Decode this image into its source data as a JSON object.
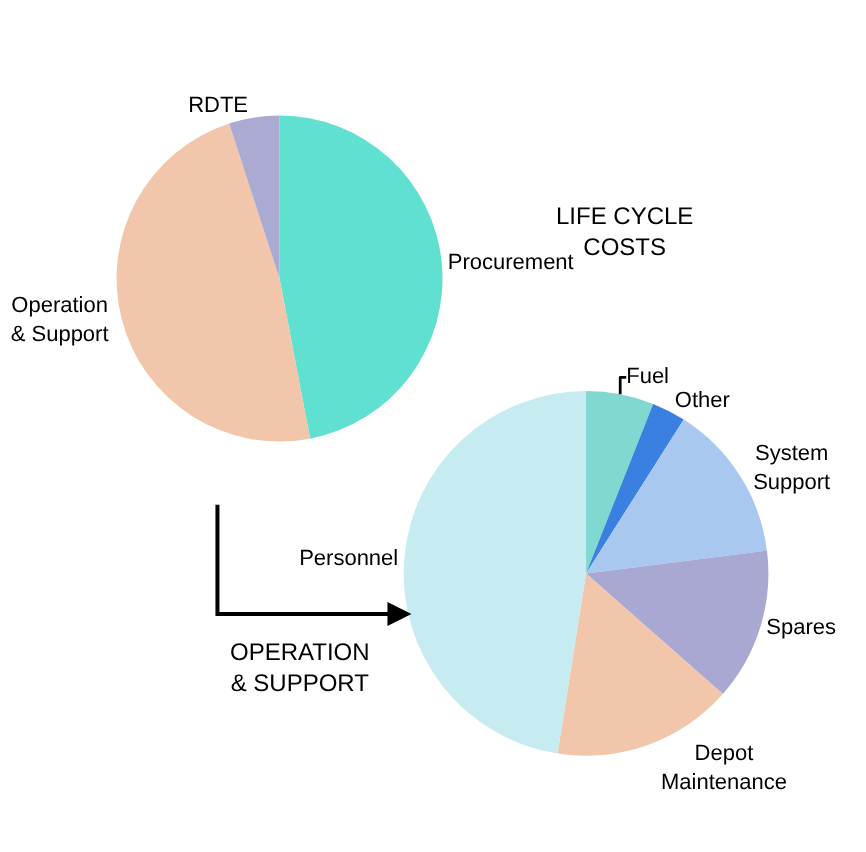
{
  "chart_data": [
    {
      "type": "pie",
      "title": "LIFE CYCLE\nCOSTS",
      "categories": [
        "Procurement",
        "Operation\n& Support",
        "RDTE"
      ],
      "values": [
        47,
        48,
        5
      ],
      "colors": [
        "#5fe0d0",
        "#f2c6aa",
        "#aaaad2"
      ]
    },
    {
      "type": "pie",
      "title": "OPERATION\n& SUPPORT",
      "categories": [
        "Fuel",
        "Other",
        "System\nSupport",
        "Spares",
        "Depot\nMaintenance",
        "Personnel"
      ],
      "values": [
        6,
        3,
        14,
        13.5,
        16,
        47.5
      ],
      "colors": [
        "#80d8d0",
        "#3a80e0",
        "#a8c8f0",
        "#a8a8d2",
        "#f2c6aa",
        "#c6ecf2"
      ]
    }
  ]
}
